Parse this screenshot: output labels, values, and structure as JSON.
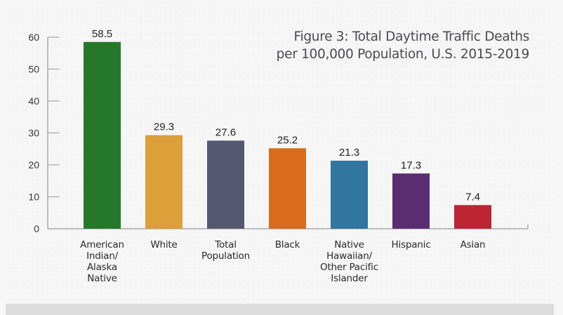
{
  "chart_data": {
    "type": "bar",
    "title": "Figure 3: Total Daytime Traffic Deaths per 100,000 Population, U.S. 2015-2019",
    "title_lines": [
      "Figure 3: Total Daytime Traffic Deaths",
      "per 100,000 Population, U.S. 2015-2019"
    ],
    "xlabel": "",
    "ylabel": "",
    "ylim": [
      0,
      60
    ],
    "yticks": [
      0,
      10,
      20,
      30,
      40,
      50,
      60
    ],
    "grid": false,
    "legend": "none",
    "categories": [
      "American\nIndian/\nAlaska\nNative",
      "White",
      "Total\nPopulation",
      "Black",
      "Native\nHawaiian/\nOther Pacific\nIslander",
      "Hispanic",
      "Asian"
    ],
    "values": [
      58.5,
      29.3,
      27.6,
      25.2,
      21.3,
      17.3,
      7.4
    ],
    "value_labels": [
      "58.5",
      "29.3",
      "27.6",
      "25.2",
      "21.3",
      "17.3",
      "7.4"
    ],
    "colors": [
      "#25782a",
      "#dd9f3a",
      "#545870",
      "#d96b1a",
      "#30769e",
      "#5a2d72",
      "#bd2434"
    ]
  }
}
